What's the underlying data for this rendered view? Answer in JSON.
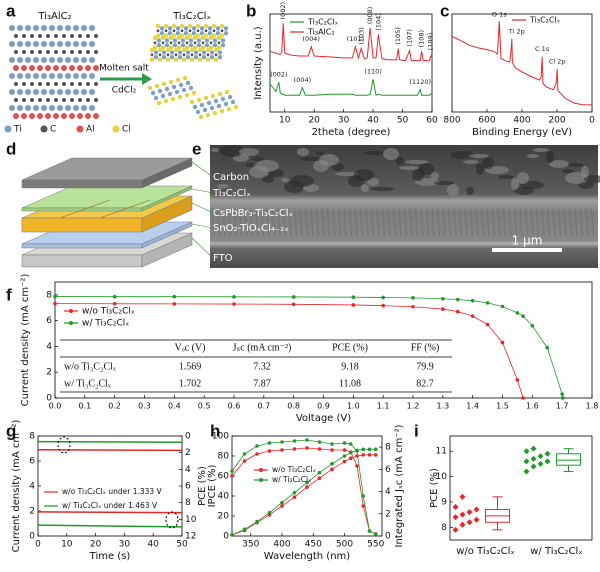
{
  "panel_labels": [
    "a",
    "b",
    "c",
    "d",
    "e",
    "f",
    "g",
    "h",
    "i"
  ],
  "panel_a": {
    "left_title": "Ti₃AlC₂",
    "right_title": "Ti₃C₂Clₓ",
    "arrow_top": "Molten salt",
    "arrow_bottom": "CdCl₂",
    "legend": [
      "Ti",
      "C",
      "Al",
      "Cl"
    ]
  },
  "panel_e": {
    "layers": [
      "Carbon",
      "Ti₃C₂Clₓ",
      "CsPbBr₃-Ti₃C₂Clₓ",
      "SnO₂-TiOₓCl₄₋₂ₓ",
      "FTO"
    ],
    "scale_bar": "1 μm"
  },
  "chart_data": [
    {
      "type": "line",
      "xlabel": "2theta (degree)",
      "ylabel": "Intensity (a.u.)",
      "x": [
        5,
        7,
        8,
        8.5,
        9,
        9.5,
        10,
        12,
        15,
        16,
        17,
        18,
        19,
        20,
        25,
        30,
        33,
        34,
        35,
        36,
        37,
        38,
        39,
        40,
        41,
        41.8,
        43,
        45,
        48,
        48.5,
        49,
        51,
        52.4,
        53,
        55,
        56,
        56.5,
        57,
        59,
        60
      ],
      "xlim": [
        5,
        60
      ],
      "xticks": [
        10,
        20,
        30,
        40,
        50,
        60
      ],
      "ylim": [
        0,
        10.5
      ],
      "series": [
        {
          "name": "Ti₃C₂Clₓ",
          "color": "#1f9a2a",
          "values": [
            3.0,
            2.2,
            3.2,
            2.0,
            1.9,
            1.9,
            1.8,
            1.8,
            1.8,
            2.6,
            1.8,
            1.8,
            1.8,
            1.8,
            1.9,
            1.9,
            1.9,
            1.8,
            1.8,
            1.8,
            1.8,
            1.8,
            1.9,
            3.5,
            1.8,
            1.9,
            1.8,
            1.8,
            1.8,
            1.8,
            1.8,
            1.8,
            1.8,
            1.8,
            1.8,
            2.4,
            1.8,
            1.8,
            1.8,
            2.0
          ]
        },
        {
          "name": "Ti₃AlC₂",
          "color": "#e8262a",
          "values": [
            6.5,
            6.3,
            6.2,
            6.2,
            6.4,
            9.5,
            6.3,
            6.1,
            6.0,
            6.0,
            6.0,
            6.0,
            7.0,
            6.0,
            5.9,
            5.8,
            5.8,
            7.0,
            5.8,
            6.8,
            5.7,
            5.8,
            9.0,
            5.8,
            5.8,
            8.3,
            5.7,
            5.6,
            5.6,
            6.8,
            5.6,
            5.5,
            6.6,
            5.5,
            5.5,
            5.5,
            6.5,
            5.5,
            5.5,
            6.2
          ]
        }
      ],
      "annotations": [
        {
          "text": "(002)",
          "x": 9.5,
          "y": 9.7,
          "color": "#222",
          "rotate": true
        },
        {
          "text": "(004)",
          "x": 19,
          "y": 7.3,
          "color": "#222",
          "rotate": false
        },
        {
          "text": "(101)",
          "x": 34,
          "y": 7.3,
          "color": "#222",
          "rotate": false
        },
        {
          "text": "(103)",
          "x": 36,
          "y": 7.0,
          "color": "#222",
          "rotate": true
        },
        {
          "text": "(008)",
          "x": 39,
          "y": 9.2,
          "color": "#222",
          "rotate": true
        },
        {
          "text": "(104)",
          "x": 41.8,
          "y": 8.5,
          "color": "#222",
          "rotate": true
        },
        {
          "text": "(105)",
          "x": 48.5,
          "y": 7.0,
          "color": "#222",
          "rotate": true
        },
        {
          "text": "(107)",
          "x": 52.4,
          "y": 6.8,
          "color": "#222",
          "rotate": true
        },
        {
          "text": "(108)",
          "x": 56.5,
          "y": 6.7,
          "color": "#222",
          "rotate": true
        },
        {
          "text": "(109)",
          "x": 59.5,
          "y": 6.4,
          "color": "#222",
          "rotate": true
        },
        {
          "text": "(002)",
          "x": 8,
          "y": 3.5,
          "color": "#222",
          "rotate": false
        },
        {
          "text": "(004)",
          "x": 16,
          "y": 2.9,
          "color": "#222",
          "rotate": false
        },
        {
          "text": "(110)",
          "x": 40,
          "y": 3.8,
          "color": "#222",
          "rotate": false
        },
        {
          "text": "(1120)",
          "x": 56,
          "y": 2.7,
          "color": "#222",
          "rotate": false
        }
      ]
    },
    {
      "type": "line",
      "xlabel": "Binding Energy (eV)",
      "x": [
        800,
        750,
        700,
        650,
        600,
        560,
        540,
        530,
        520,
        500,
        470,
        460,
        458,
        455,
        440,
        400,
        350,
        300,
        290,
        285,
        280,
        260,
        220,
        205,
        199,
        195,
        150,
        100,
        50,
        0
      ],
      "xlim": [
        800,
        0
      ],
      "xticks": [
        800,
        600,
        400,
        200,
        0
      ],
      "ylim": [
        0,
        11
      ],
      "series": [
        {
          "name": "Ti₃C₂Clₓ",
          "color": "#e8262a",
          "values": [
            8.5,
            8.0,
            7.5,
            7.2,
            7.0,
            6.8,
            6.5,
            10.2,
            6.0,
            5.8,
            5.6,
            7.5,
            8.2,
            5.6,
            5.0,
            4.5,
            4.0,
            3.6,
            4.0,
            6.2,
            3.2,
            2.8,
            2.5,
            3.2,
            4.8,
            2.4,
            1.5,
            1.0,
            0.8,
            0.8
          ]
        }
      ],
      "annotations": [
        {
          "text": "O 1s",
          "x": 530,
          "y": 10.4,
          "color": "#222",
          "rotate": false
        },
        {
          "text": "Ti 2p",
          "x": 430,
          "y": 8.5,
          "color": "#222",
          "rotate": false
        },
        {
          "text": "C 1s",
          "x": 285,
          "y": 6.5,
          "color": "#222",
          "rotate": false
        },
        {
          "text": "Cl 2p",
          "x": 199,
          "y": 5.1,
          "color": "#222",
          "rotate": false
        }
      ]
    },
    {
      "type": "line",
      "xlabel": "Voltage (V)",
      "ylabel": "Current density (mA cm⁻²)",
      "x": [
        0,
        0.2,
        0.4,
        0.6,
        0.8,
        1.0,
        1.1,
        1.2,
        1.3,
        1.35,
        1.4,
        1.45,
        1.5,
        1.55,
        1.569,
        1.6,
        1.65,
        1.7,
        1.702
      ],
      "xlim": [
        0,
        1.8
      ],
      "xticks": [
        {
          "value": 0,
          "label": "0.0"
        },
        0.1,
        0.2,
        0.3,
        0.4,
        0.5,
        0.6,
        0.7,
        0.8,
        0.9,
        {
          "value": 1,
          "label": "1.0"
        },
        1.1,
        1.2,
        1.3,
        1.4,
        1.5,
        1.6,
        1.7,
        1.8
      ],
      "ylim": [
        0,
        9
      ],
      "yticks": [
        0,
        2,
        4,
        6,
        8
      ],
      "series": [
        {
          "name": "w/o  Ti₃C₂Clₓ",
          "color": "#e8262a",
          "marker": true,
          "values": [
            7.32,
            7.31,
            7.3,
            7.29,
            7.27,
            7.22,
            7.17,
            7.08,
            6.9,
            6.7,
            6.35,
            5.7,
            4.3,
            1.4,
            0,
            null,
            null,
            null,
            null
          ]
        },
        {
          "name": "w/  Ti₃C₂Clₓ",
          "color": "#1f9a2a",
          "marker": true,
          "values": [
            7.87,
            7.86,
            7.86,
            7.85,
            7.84,
            7.82,
            7.8,
            7.77,
            7.7,
            7.64,
            7.55,
            7.38,
            7.1,
            6.6,
            6.35,
            5.6,
            3.9,
            0.3,
            0
          ]
        }
      ]
    },
    {
      "type": "line",
      "xlabel": "Time (s)",
      "ylabel": "Current density (mA cm⁻²)",
      "y2label": "PCE (%)",
      "x": [
        0,
        50
      ],
      "xlim": [
        0,
        50
      ],
      "xticks": [
        0,
        10,
        20,
        30,
        40,
        50
      ],
      "ylim": [
        0,
        8
      ],
      "yticks": [
        0,
        2,
        4,
        6,
        8
      ],
      "y2lim": [
        12,
        0
      ],
      "y2ticks": [
        0,
        2,
        4,
        6,
        8,
        10,
        12
      ],
      "series": [
        {
          "name": "w/o Ti₃C₂Clₓ  under 1.333 V",
          "color": "#e8262a",
          "values": [
            6.9,
            6.85
          ]
        },
        {
          "name": "w/  Ti₃C₂Clₓ  under 1.463 V",
          "color": "#1f9a2a",
          "values": [
            7.55,
            7.5
          ]
        },
        {
          "color": "#e8262a",
          "axis": "y2",
          "values": [
            9.1,
            9.2
          ]
        },
        {
          "color": "#1f9a2a",
          "axis": "y2",
          "values": [
            10.7,
            10.9
          ]
        }
      ]
    },
    {
      "type": "line",
      "xlabel": "Wavelength (nm)",
      "ylabel": "IPCE (%)",
      "y2label": "Integrated Jₛc (mA cm⁻²)",
      "x": [
        320,
        340,
        360,
        380,
        400,
        420,
        440,
        460,
        480,
        500,
        510,
        520,
        530,
        540,
        550
      ],
      "xlim": [
        320,
        560
      ],
      "xticks": [
        350,
        400,
        450,
        500,
        550
      ],
      "ylim": [
        0,
        100
      ],
      "yticks": [
        0,
        20,
        40,
        60,
        80,
        100
      ],
      "y2lim": [
        0,
        9
      ],
      "y2ticks": [
        0,
        2,
        4,
        6,
        8
      ],
      "series": [
        {
          "name": "w/o Ti₃C₂Clₓ",
          "color": "#e8262a",
          "marker": true,
          "values": [
            60,
            75,
            82,
            85,
            86,
            87,
            88,
            87,
            86,
            86,
            84,
            70,
            30,
            5,
            2
          ]
        },
        {
          "name": "w/   Ti₃C₂Clₓ",
          "color": "#1f9a2a",
          "marker": true,
          "values": [
            65,
            82,
            90,
            93,
            94,
            95,
            96,
            94,
            92,
            93,
            92,
            85,
            40,
            5,
            2
          ]
        },
        {
          "color": "#e8262a",
          "axis": "y2",
          "marker": true,
          "values": [
            0.1,
            0.5,
            1.2,
            1.9,
            2.7,
            3.5,
            4.4,
            5.2,
            6.0,
            6.7,
            7.0,
            7.2,
            7.3,
            7.3,
            7.3
          ]
        },
        {
          "color": "#1f9a2a",
          "axis": "y2",
          "marker": true,
          "values": [
            0.1,
            0.6,
            1.3,
            2.1,
            3.0,
            3.9,
            4.8,
            5.7,
            6.5,
            7.2,
            7.5,
            7.7,
            7.8,
            7.8,
            7.8
          ]
        }
      ]
    },
    {
      "type": "box",
      "ylabel": "PCE (%)",
      "categories": [
        "w/o Ti₃C₂Clₓ",
        "w/  Ti₃C₂Clₓ"
      ],
      "ylim": [
        7.5,
        11.6
      ],
      "yticks": [
        8,
        9,
        10,
        11
      ],
      "groups": [
        {
          "color": "#e8262a",
          "points": [
            7.9,
            8.1,
            8.2,
            8.3,
            8.4,
            8.5,
            8.6,
            8.7,
            8.8,
            9.2
          ],
          "min": 7.9,
          "q1": 8.2,
          "median": 8.45,
          "q3": 8.7,
          "max": 9.2
        },
        {
          "color": "#1f9a2a",
          "points": [
            10.2,
            10.4,
            10.5,
            10.6,
            10.6,
            10.7,
            10.8,
            10.9,
            11.0,
            11.1
          ],
          "min": 10.2,
          "q1": 10.45,
          "median": 10.65,
          "q3": 10.9,
          "max": 11.1
        }
      ]
    }
  ],
  "table_f": {
    "columns": [
      "Vₒc (V)",
      "Jₛc (mA cm⁻²)",
      "PCE (%)",
      "FF (%)"
    ],
    "rows": [
      {
        "label": "w/o  Ti₃C₂Clₓ",
        "values": [
          1.569,
          7.32,
          9.18,
          79.9
        ]
      },
      {
        "label": "w/  Ti₃C₂Clₓ",
        "values": [
          1.702,
          7.87,
          11.08,
          82.7
        ]
      }
    ]
  }
}
